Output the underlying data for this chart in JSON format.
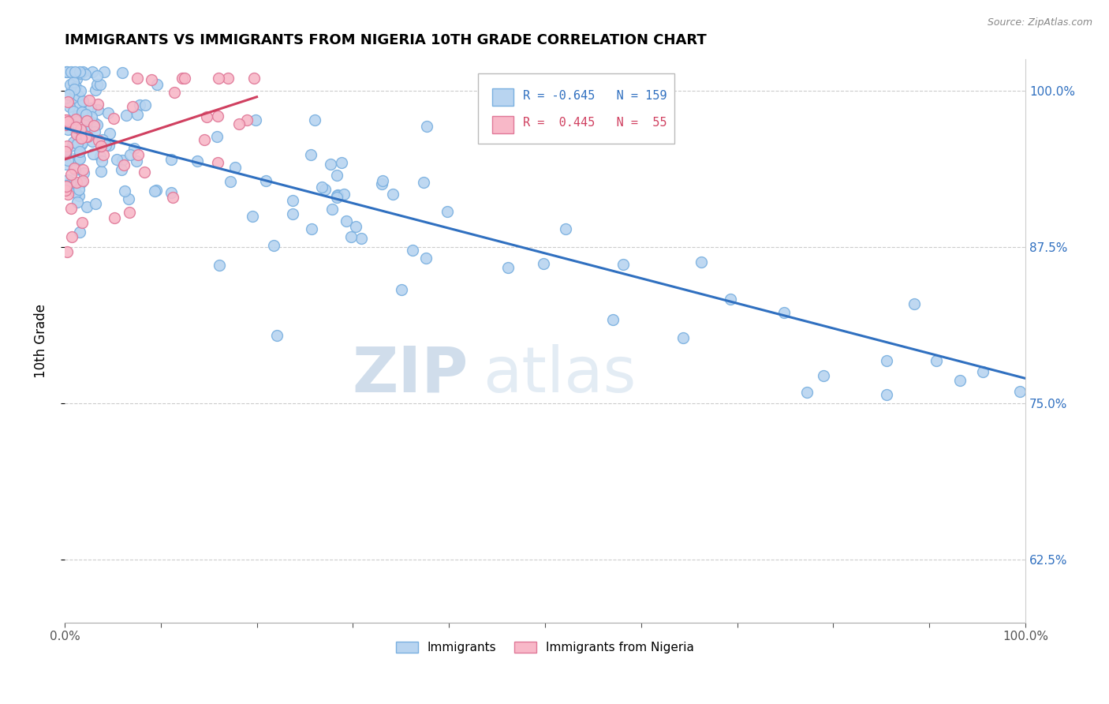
{
  "title": "IMMIGRANTS VS IMMIGRANTS FROM NIGERIA 10TH GRADE CORRELATION CHART",
  "source": "Source: ZipAtlas.com",
  "ylabel": "10th Grade",
  "ytick_labels": [
    "100.0%",
    "87.5%",
    "75.0%",
    "62.5%"
  ],
  "ytick_values": [
    1.0,
    0.875,
    0.75,
    0.625
  ],
  "legend_blue_R": "-0.645",
  "legend_blue_N": "159",
  "legend_pink_R": " 0.445",
  "legend_pink_N": " 55",
  "blue_color": "#b8d4f0",
  "blue_edge_color": "#7ab0e0",
  "pink_color": "#f8b8c8",
  "pink_edge_color": "#e07898",
  "blue_line_color": "#3070c0",
  "pink_line_color": "#d04060",
  "watermark_zip": "ZIP",
  "watermark_atlas": "atlas",
  "blue_line_x0": 0.0,
  "blue_line_x1": 1.0,
  "blue_line_y0": 0.97,
  "blue_line_y1": 0.77,
  "pink_line_x0": 0.0,
  "pink_line_x1": 0.2,
  "pink_line_y0": 0.945,
  "pink_line_y1": 0.995,
  "xmin": 0.0,
  "xmax": 1.0,
  "ymin": 0.575,
  "ymax": 1.025,
  "title_fontsize": 13,
  "source_fontsize": 9,
  "tick_fontsize": 11,
  "legend_fontsize": 11
}
